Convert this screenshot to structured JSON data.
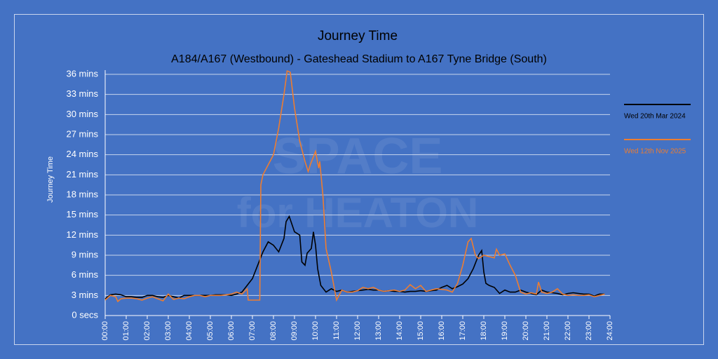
{
  "chart_data": {
    "type": "line",
    "title": "Journey Time",
    "subtitle": "A184/A167 (Westbound) - Gateshead Stadium to A167 Tyne Bridge (South)",
    "y_label": "Journey Time",
    "watermark": [
      "SPACE",
      "for HEATON"
    ],
    "grid": true,
    "legend": "right",
    "xlim": [
      0,
      24
    ],
    "xticks": [
      {
        "value": 0,
        "label": "00:00"
      },
      {
        "value": 1,
        "label": "01:00"
      },
      {
        "value": 2,
        "label": "02:00"
      },
      {
        "value": 3,
        "label": "03:00"
      },
      {
        "value": 4,
        "label": "04:00"
      },
      {
        "value": 5,
        "label": "05:00"
      },
      {
        "value": 6,
        "label": "06:00"
      },
      {
        "value": 7,
        "label": "07:00"
      },
      {
        "value": 8,
        "label": "08:00"
      },
      {
        "value": 9,
        "label": "09:00"
      },
      {
        "value": 10,
        "label": "10:00"
      },
      {
        "value": 11,
        "label": "11:00"
      },
      {
        "value": 12,
        "label": "12:00"
      },
      {
        "value": 13,
        "label": "13:00"
      },
      {
        "value": 14,
        "label": "14:00"
      },
      {
        "value": 15,
        "label": "15:00"
      },
      {
        "value": 16,
        "label": "16:00"
      },
      {
        "value": 17,
        "label": "17:00"
      },
      {
        "value": 18,
        "label": "18:00"
      },
      {
        "value": 19,
        "label": "19:00"
      },
      {
        "value": 20,
        "label": "20:00"
      },
      {
        "value": 21,
        "label": "21:00"
      },
      {
        "value": 22,
        "label": "22:00"
      },
      {
        "value": 23,
        "label": "23:00"
      },
      {
        "value": 24,
        "label": "24:00"
      }
    ],
    "ylim": [
      0,
      36
    ],
    "yticks": [
      {
        "value": 0,
        "label": "0 secs"
      },
      {
        "value": 3,
        "label": "3 mins"
      },
      {
        "value": 6,
        "label": "6 mins"
      },
      {
        "value": 9,
        "label": "9 mins"
      },
      {
        "value": 12,
        "label": "12 mins"
      },
      {
        "value": 15,
        "label": "15 mins"
      },
      {
        "value": 18,
        "label": "18 mins"
      },
      {
        "value": 21,
        "label": "21 mins"
      },
      {
        "value": 24,
        "label": "24 mins"
      },
      {
        "value": 27,
        "label": "27 mins"
      },
      {
        "value": 30,
        "label": "30 mins"
      },
      {
        "value": 33,
        "label": "33 mins"
      },
      {
        "value": 36,
        "label": "36 mins"
      }
    ],
    "series": [
      {
        "name": "Wed 20th Mar 2024",
        "color": "#000000",
        "x": [
          0,
          0.25,
          0.5,
          0.75,
          1,
          1.25,
          1.5,
          1.75,
          2,
          2.25,
          2.5,
          2.75,
          3,
          3.25,
          3.5,
          3.75,
          4,
          4.25,
          4.5,
          4.75,
          5,
          5.25,
          5.5,
          5.75,
          6,
          6.25,
          6.5,
          6.75,
          7,
          7.25,
          7.5,
          7.75,
          8,
          8.25,
          8.5,
          8.6,
          8.75,
          9,
          9.25,
          9.35,
          9.5,
          9.6,
          9.8,
          9.9,
          10,
          10.1,
          10.25,
          10.5,
          10.75,
          11,
          11.25,
          11.5,
          11.75,
          12,
          12.25,
          12.5,
          12.75,
          13,
          13.25,
          13.5,
          13.75,
          14,
          14.25,
          14.5,
          14.75,
          15,
          15.25,
          15.5,
          15.75,
          16,
          16.25,
          16.5,
          16.75,
          17,
          17.25,
          17.5,
          17.75,
          17.9,
          18,
          18.1,
          18.25,
          18.5,
          18.75,
          19,
          19.25,
          19.5,
          19.75,
          20,
          20.25,
          20.5,
          20.75,
          21,
          21.25,
          21.5,
          21.75,
          22,
          22.25,
          22.5,
          22.75,
          23,
          23.25,
          23.5,
          23.75
        ],
        "values": [
          2.5,
          3.1,
          3.2,
          3.1,
          2.8,
          2.8,
          2.7,
          2.7,
          3.0,
          3.0,
          2.8,
          2.7,
          3.0,
          2.8,
          2.6,
          3.0,
          3.0,
          3.0,
          3.0,
          3.0,
          3.0,
          3.1,
          3.1,
          3.1,
          3.0,
          3.2,
          3.5,
          4.5,
          5.5,
          7.5,
          9.5,
          11.0,
          10.5,
          9.5,
          11.5,
          14.0,
          14.8,
          12.5,
          12.0,
          8.0,
          7.5,
          9.3,
          10.0,
          12.5,
          10.5,
          7.0,
          4.5,
          3.5,
          4.0,
          3.6,
          3.8,
          3.5,
          3.6,
          3.7,
          3.8,
          3.9,
          3.8,
          3.8,
          3.6,
          3.7,
          3.6,
          3.6,
          3.5,
          3.6,
          3.6,
          3.7,
          3.6,
          3.7,
          3.8,
          4.2,
          4.5,
          4.0,
          4.3,
          4.7,
          5.5,
          7.0,
          9.0,
          9.7,
          6.5,
          4.8,
          4.5,
          4.2,
          3.3,
          3.8,
          3.5,
          3.5,
          3.8,
          3.5,
          3.3,
          3.1,
          3.8,
          3.5,
          3.4,
          3.3,
          3.1,
          3.3,
          3.4,
          3.3,
          3.2,
          3.2,
          2.9,
          3.2,
          3.2
        ]
      },
      {
        "name": "Wed 12th Nov 2025",
        "color": "#ed7d31",
        "x": [
          0,
          0.25,
          0.5,
          0.6,
          0.75,
          1,
          1.25,
          1.5,
          1.75,
          2,
          2.25,
          2.5,
          2.75,
          3,
          3.25,
          3.5,
          3.75,
          4,
          4.25,
          4.5,
          4.75,
          5,
          5.25,
          5.5,
          5.75,
          6,
          6.25,
          6.5,
          6.75,
          6.8,
          7,
          7.25,
          7.35,
          7.4,
          7.5,
          7.75,
          8,
          8.25,
          8.5,
          8.65,
          8.8,
          9,
          9.25,
          9.5,
          9.65,
          9.75,
          10,
          10.15,
          10.2,
          10.35,
          10.5,
          10.75,
          11,
          11.25,
          11.5,
          11.75,
          12,
          12.25,
          12.5,
          12.75,
          13,
          13.25,
          13.5,
          13.75,
          14,
          14.25,
          14.5,
          14.75,
          15,
          15.25,
          15.5,
          15.75,
          16,
          16.25,
          16.5,
          16.75,
          17,
          17.25,
          17.4,
          17.6,
          17.75,
          18,
          18.25,
          18.5,
          18.6,
          18.75,
          19,
          19.25,
          19.5,
          19.75,
          20,
          20.25,
          20.5,
          20.6,
          20.75,
          21,
          21.25,
          21.5,
          21.75,
          22,
          22.25,
          22.5,
          22.75,
          23,
          23.25,
          23.5,
          23.75
        ],
        "values": [
          2.3,
          3.0,
          2.8,
          2.1,
          2.5,
          2.6,
          2.6,
          2.5,
          2.3,
          2.6,
          2.8,
          2.5,
          2.2,
          3.2,
          2.4,
          2.6,
          2.5,
          2.8,
          3.0,
          3.0,
          2.8,
          3.0,
          3.0,
          3.0,
          3.1,
          3.2,
          3.5,
          3.2,
          4.0,
          2.3,
          2.3,
          2.3,
          2.3,
          19.5,
          21,
          22.5,
          24,
          28,
          33,
          36.5,
          36.3,
          31,
          26,
          23,
          21.5,
          22.5,
          24.5,
          22,
          23,
          18,
          10,
          6.5,
          2.3,
          3.8,
          3.5,
          3.5,
          3.7,
          4.2,
          4.0,
          4.2,
          3.8,
          3.6,
          3.7,
          3.8,
          3.6,
          3.8,
          4.6,
          4.0,
          4.5,
          3.6,
          3.8,
          4.0,
          3.9,
          3.8,
          3.5,
          4.8,
          7.5,
          11.0,
          11.5,
          9.0,
          8.5,
          9.0,
          8.8,
          8.6,
          9.9,
          9.0,
          9.2,
          7.5,
          6.0,
          3.5,
          3.2,
          3.4,
          3.2,
          5.0,
          3.5,
          3.3,
          3.5,
          4.0,
          3.2,
          3.0,
          3.1,
          3.0,
          3.0,
          3.1,
          2.8,
          3.0,
          3.2
        ]
      }
    ]
  }
}
